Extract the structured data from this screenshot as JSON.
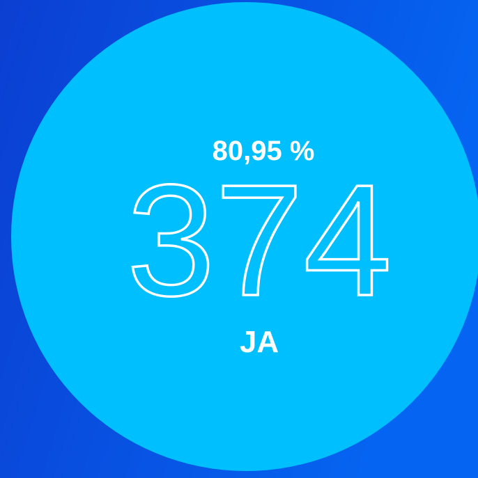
{
  "result": {
    "percentage": "80,95 %",
    "count": 374,
    "label": "JA"
  }
}
